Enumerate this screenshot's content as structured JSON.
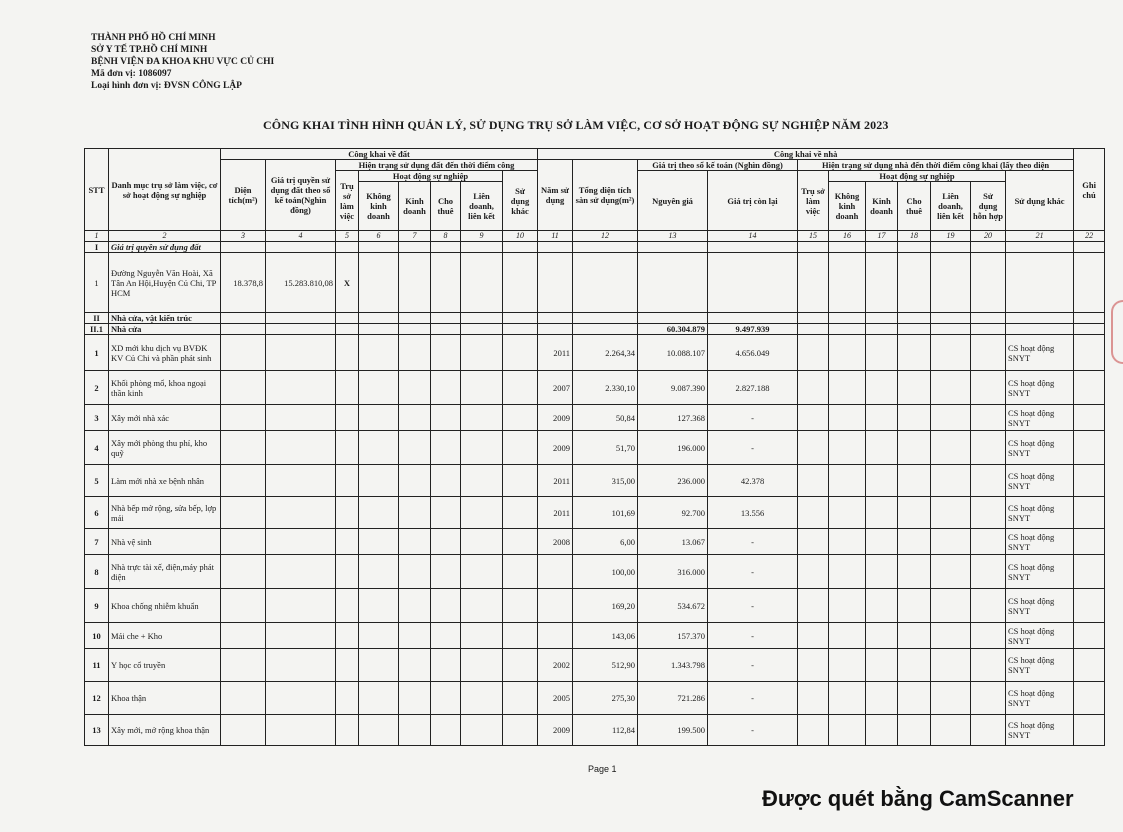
{
  "org": {
    "line1": "THÀNH PHỐ HỒ CHÍ MINH",
    "line2": "SỞ Y TẾ TP.HỒ CHÍ MINH",
    "line3": "BỆNH VIỆN ĐA KHOA KHU VỰC CỦ CHI",
    "line4": "Mã đơn vị: 1086097",
    "line5": "Loại hình đơn vị: ĐVSN CÔNG LẬP"
  },
  "title": "CÔNG KHAI TÌNH HÌNH QUẢN LÝ, SỬ DỤNG TRỤ SỞ LÀM VIỆC, CƠ SỞ HOẠT ĐỘNG SỰ NGHIỆP NĂM  2023",
  "headers": {
    "stt": "STT",
    "name": "Danh mục trụ sở làm việc, cơ sở hoạt động sự nghiệp",
    "land": "Công khai về đất",
    "house": "Công khai về nhà",
    "note": "Ghi chú",
    "area": "Diện tích(m²)",
    "land_value": "Giá trị quyền sử dụng đất theo sổ kế toán(Nghìn đồng)",
    "land_status": "Hiện trạng sử dụng đất đến thời điểm công",
    "year": "Năm sử dụng",
    "floor_area": "Tổng diện tích sàn sử dụng(m²)",
    "book_value": "Giá trị theo sổ kế toán (Nghìn đồng)",
    "house_status": "Hiện trạng sử dụng nhà đến thời điểm công khai (lấy theo diện",
    "office": "Trụ sở làm việc",
    "activity": "Hoạt động sự nghiệp",
    "other": "Sử dụng khác",
    "original": "Nguyên giá",
    "remaining": "Giá trị còn lại",
    "non_business": "Không kinh doanh",
    "business": "Kinh doanh",
    "lease": "Cho thuê",
    "joint": "Liên doanh, liên kết",
    "mixed": "Sử dụng hỗn hợp",
    "numbers": [
      "1",
      "2",
      "3",
      "4",
      "5",
      "6",
      "7",
      "8",
      "9",
      "10",
      "11",
      "12",
      "13",
      "14",
      "15",
      "16",
      "17",
      "18",
      "19",
      "20",
      "21",
      "22"
    ]
  },
  "sections": {
    "s1": {
      "stt": "I",
      "label": "Giá trị quyền sử dụng đất"
    },
    "land_row": {
      "stt": "1",
      "name": "Đường Nguyễn Văn Hoài, Xã Tân An Hội,Huyện Củ Chi, TP HCM",
      "area": "18.378,8",
      "value": "15.283.810,08",
      "office": "X"
    },
    "s2": {
      "stt": "II",
      "label": "Nhà cửa, vật kiến trúc"
    },
    "s21": {
      "stt": "II.1",
      "label": "Nhà cửa",
      "original": "60.304.879",
      "remaining": "9.497.939"
    }
  },
  "rows": [
    {
      "stt": "1",
      "name": "XD mới khu dịch vụ BVĐK KV Củ Chi và phần phát sinh",
      "year": "2011",
      "floor": "2.264,34",
      "original": "10.088.107",
      "remaining": "4.656.049",
      "other": "CS hoạt động SNYT"
    },
    {
      "stt": "2",
      "name": "Khối phòng mổ, khoa ngoại thần kinh",
      "year": "2007",
      "floor": "2.330,10",
      "original": "9.087.390",
      "remaining": "2.827.188",
      "other": "CS hoạt động SNYT"
    },
    {
      "stt": "3",
      "name": "Xây mới nhà xác",
      "year": "2009",
      "floor": "50,84",
      "original": "127.368",
      "remaining": "-",
      "other": "CS hoạt động SNYT"
    },
    {
      "stt": "4",
      "name": "Xây mới phòng thu phí, kho quỹ",
      "year": "2009",
      "floor": "51,70",
      "original": "196.000",
      "remaining": "-",
      "other": "CS hoạt động SNYT"
    },
    {
      "stt": "5",
      "name": "Làm mới nhà xe bệnh nhân",
      "year": "2011",
      "floor": "315,00",
      "original": "236.000",
      "remaining": "42.378",
      "other": "CS hoạt động SNYT"
    },
    {
      "stt": "6",
      "name": "Nhà bếp mở rộng, sửa bếp, lợp mái",
      "year": "2011",
      "floor": "101,69",
      "original": "92.700",
      "remaining": "13.556",
      "other": "CS hoạt động SNYT"
    },
    {
      "stt": "7",
      "name": "Nhà vệ sinh",
      "year": "2008",
      "floor": "6,00",
      "original": "13.067",
      "remaining": "-",
      "other": "CS hoạt động SNYT"
    },
    {
      "stt": "8",
      "name": "Nhà trực tài xế, điện,máy phát điện",
      "year": "",
      "floor": "100,00",
      "original": "316.000",
      "remaining": "-",
      "other": "CS hoạt động SNYT"
    },
    {
      "stt": "9",
      "name": "Khoa chống nhiễm khuẩn",
      "year": "",
      "floor": "169,20",
      "original": "534.672",
      "remaining": "-",
      "other": "CS hoạt động SNYT"
    },
    {
      "stt": "10",
      "name": "Mái che + Kho",
      "year": "",
      "floor": "143,06",
      "original": "157.370",
      "remaining": "-",
      "other": "CS hoạt động SNYT"
    },
    {
      "stt": "11",
      "name": "Y học cổ truyền",
      "year": "2002",
      "floor": "512,90",
      "original": "1.343.798",
      "remaining": "-",
      "other": "CS hoạt động SNYT"
    },
    {
      "stt": "12",
      "name": "Khoa thận",
      "year": "2005",
      "floor": "275,30",
      "original": "721.286",
      "remaining": "-",
      "other": "CS hoạt động SNYT"
    },
    {
      "stt": "13",
      "name": "Xây mới, mở rộng khoa thận",
      "year": "2009",
      "floor": "112,84",
      "original": "199.500",
      "remaining": "-",
      "other": "CS hoạt động SNYT"
    }
  ],
  "footer": {
    "page": "Page 1",
    "scanner": "Được quét bằng CamScanner"
  }
}
